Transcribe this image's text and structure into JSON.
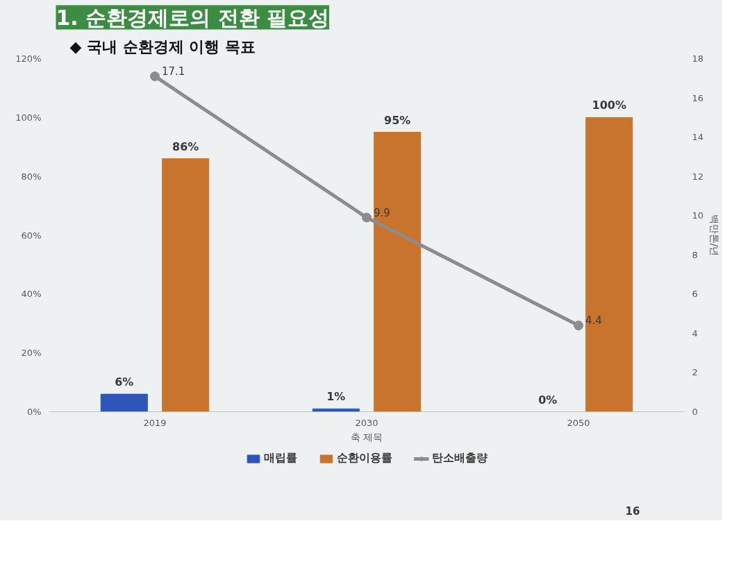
{
  "chart_data": {
    "type": "bar",
    "title": "1. 순환경제로의 전환 필요성",
    "subtitle": "◆ 국내 순환경제 이행 목표",
    "xlabel": "축 제목",
    "y2label": "백만톤/년",
    "categories": [
      "2019",
      "2030",
      "2050"
    ],
    "series": [
      {
        "name": "매립률",
        "color": "#2e56b8",
        "values": [
          6,
          1,
          0
        ],
        "value_labels": [
          "6%",
          "1%",
          "0%"
        ]
      },
      {
        "name": "순환이용률",
        "color": "#c9742c",
        "values": [
          86,
          95,
          100
        ],
        "value_labels": [
          "86%",
          "95%",
          "100%"
        ]
      },
      {
        "name": "탄소배출량",
        "type": "line",
        "axis": "y2",
        "color": "#8c8c8c",
        "marker": "circle",
        "values": [
          17.1,
          9.9,
          4.4
        ],
        "value_labels": [
          "17.1",
          "9.9",
          "4.4"
        ]
      }
    ],
    "ylim": [
      0,
      120
    ],
    "yticks": [
      {
        "value": 0,
        "label": "0%"
      },
      {
        "value": 20,
        "label": "20%"
      },
      {
        "value": 40,
        "label": "40%"
      },
      {
        "value": 60,
        "label": "60%"
      },
      {
        "value": 80,
        "label": "80%"
      },
      {
        "value": 100,
        "label": "100%"
      },
      {
        "value": 120,
        "label": "120%"
      }
    ],
    "y2lim": [
      0,
      18
    ],
    "y2ticks": [
      0,
      2,
      4,
      6,
      8,
      10,
      12,
      14,
      16,
      18
    ],
    "legend": "bottom",
    "annotations": [
      "16"
    ]
  }
}
